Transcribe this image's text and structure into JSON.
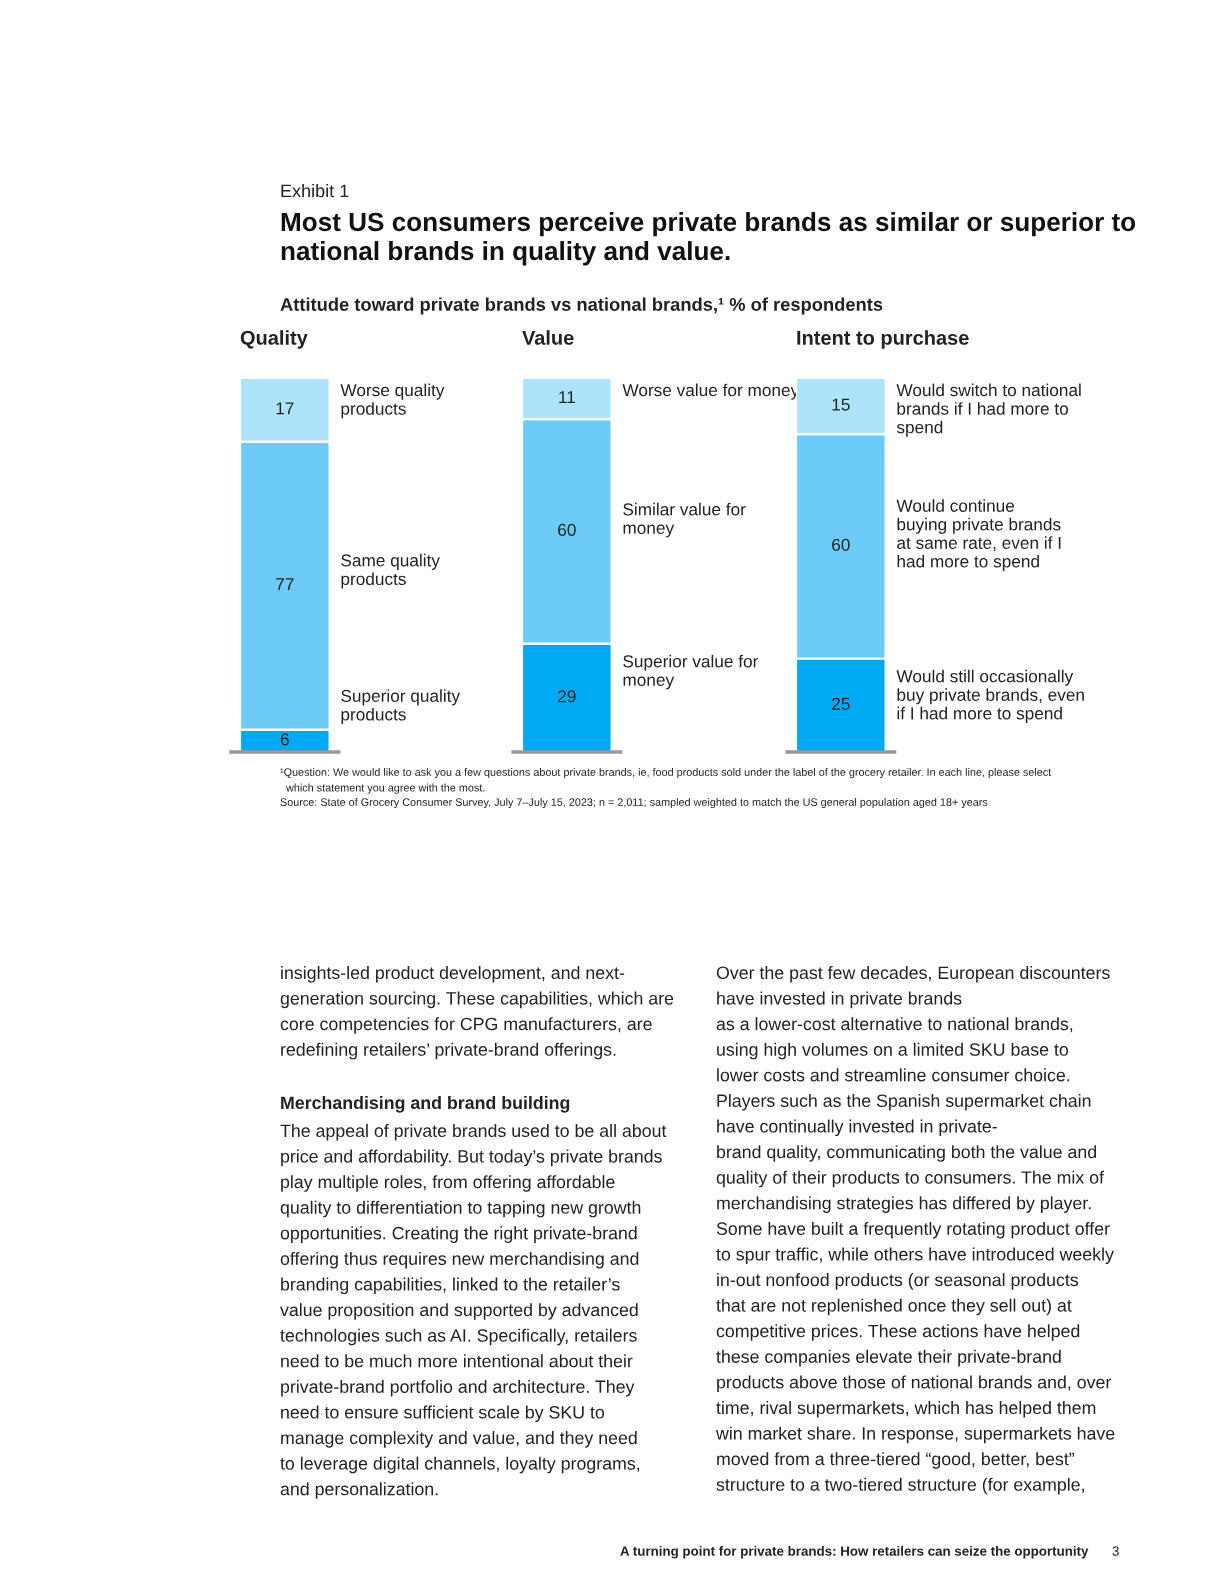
{
  "chart_data": [
    {
      "type": "other",
      "title": "Most US consumers perceive private brands as similar or superior to\nnational brands in quality and value.",
      "subtitle": "Attitude toward private brands vs national brands,¹ % of respondents",
      "annotations": [
        "Exhibit 1",
        "¹Question: We would like to ask you a few questions about private brands, ie, food products sold under the label of the grocery retailer. In each line, please select\n  which statement you agree with the most.",
        "Source: State of Grocery Consumer Survey, July 7–July 15, 2023; n = 2,011; sampled weighted to match the US general population aged 18+ years",
        "insights-led product development, and next-\ngeneration sourcing. These capabilities, which are\ncore competencies for CPG manufacturers, are\nredefining retailers’ private-brand offerings.",
        "Merchandising and brand building",
        "The appeal of private brands used to be all about\nprice and affordability. But today’s private brands\nplay multiple roles, from offering affordable\nquality to differentiation to tapping new growth\nopportunities. Creating the right private-brand\noffering thus requires new merchandising and\nbranding capabilities, linked to the retailer’s\nvalue proposition and supported by advanced\ntechnologies such as AI. Specifically, retailers\nneed to be much more intentional about their\nprivate-brand portfolio and architecture. They\nneed to ensure sufficient scale by SKU to\nmanage complexity and value, and they need\nto leverage digital channels, loyalty programs,\nand personalization.",
        "Over the past few decades, European discounters\nhave invested in private brands\nas a lower-cost alternative to national brands,\nusing high volumes on a limited SKU base to\nlower costs and streamline consumer choice.\nPlayers such as the Spanish supermarket chain\nhave continually invested in private-\nbrand quality, communicating both the value and\nquality of their products to consumers. The mix of\nmerchandising strategies has differed by player.\nSome have built a frequently rotating product offer\nto spur traffic, while others have introduced weekly\nin-out nonfood products (or seasonal products\nthat are not replenished once they sell out) at\ncompetitive prices. These actions have helped\nthese companies elevate their private-brand\nproducts above those of national brands and, over\ntime, rival supermarkets, which has helped them\nwin market share. In response, supermarkets have\nmoved from a three-tiered “good, better, best”\nstructure to a two-tiered structure (for example,",
        "A turning point for private brands: How retailers can seize the opportunity",
        "3"
      ]
    },
    {
      "type": "bar",
      "title": "Quality",
      "categories": [
        null
      ],
      "stacked": true,
      "data_labels": true,
      "legend": false,
      "series": [
        {
          "name": "Superior quality\nproducts",
          "color": "#00a9f4",
          "values": [
            6
          ]
        },
        {
          "name": "Same quality\nproducts",
          "color": "#6ccbf7",
          "values": [
            77
          ]
        },
        {
          "name": "Worse quality\nproducts",
          "color": "#aee4fb",
          "values": [
            17
          ]
        }
      ]
    },
    {
      "type": "bar",
      "title": "Value",
      "categories": [
        null
      ],
      "stacked": true,
      "data_labels": true,
      "legend": false,
      "series": [
        {
          "name": "Superior value for\nmoney",
          "color": "#00a9f4",
          "values": [
            29
          ]
        },
        {
          "name": "Similar value for\nmoney",
          "color": "#6ccbf7",
          "values": [
            60
          ]
        },
        {
          "name": "Worse value for money",
          "color": "#aee4fb",
          "values": [
            11
          ]
        }
      ]
    },
    {
      "type": "bar",
      "title": "Intent to purchase",
      "categories": [
        null
      ],
      "stacked": true,
      "data_labels": true,
      "legend": false,
      "series": [
        {
          "name": "Would still occasionally\nbuy private brands, even\nif I had more to spend",
          "color": "#00a9f4",
          "values": [
            25
          ]
        },
        {
          "name": "Would continue\nbuying private brands\nat same rate, even if I\nhad more to spend",
          "color": "#6ccbf7",
          "values": [
            60
          ]
        },
        {
          "name": "Would switch to national\nbrands if I had more to\nspend",
          "color": "#aee4fb",
          "values": [
            15
          ]
        }
      ]
    }
  ]
}
